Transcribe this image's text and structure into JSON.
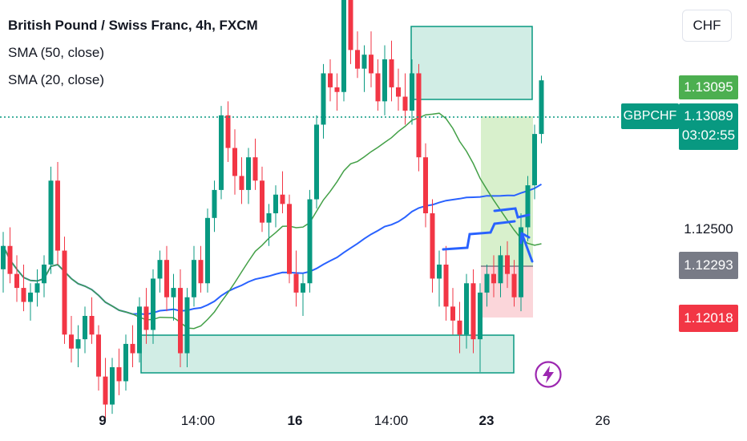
{
  "legend": {
    "title": "British Pound / Swiss Franc, 4h, FXCM",
    "ma1": "SMA (50, close)",
    "ma2": "SMA (20, close)"
  },
  "currency": "CHF",
  "symbol": "GBPCHF",
  "price_labels": {
    "high_zone": "1.13095",
    "last": "1.13089",
    "countdown": "03:02:55",
    "tick": "1.12500",
    "gray": "1.12293",
    "low_zone": "1.12018"
  },
  "colors": {
    "up": "#089981",
    "down": "#f23645",
    "sma50": "#2962ff",
    "sma20": "#43a047",
    "zone": "#d1ede5",
    "zone_border": "#089981",
    "target": "#d4eec6",
    "stop": "#fbd6da",
    "gray_label": "#787b86",
    "bolt": "#9c27b0"
  },
  "icons": {
    "bolt": "lightning-bolt-icon"
  },
  "chart_data": {
    "type": "candlestick",
    "symbol": "GBPCHF",
    "timeframe": "4h",
    "source": "FXCM",
    "x_ticks": [
      "9",
      "14:00",
      "16",
      "14:00",
      "23",
      "26"
    ],
    "y_ticks": [
      1.125
    ],
    "last_price": 1.13089,
    "series": [
      {
        "name": "SMA (50, close)",
        "color": "#2962ff"
      },
      {
        "name": "SMA (20, close)",
        "color": "#43a047"
      }
    ],
    "candles": [
      [
        1.1228,
        1.1244,
        1.1218,
        1.1238
      ],
      [
        1.1238,
        1.1246,
        1.1222,
        1.1226
      ],
      [
        1.1226,
        1.1234,
        1.1214,
        1.122
      ],
      [
        1.122,
        1.123,
        1.121,
        1.1214
      ],
      [
        1.1214,
        1.1222,
        1.1206,
        1.1218
      ],
      [
        1.1218,
        1.1228,
        1.1212,
        1.1222
      ],
      [
        1.1222,
        1.1234,
        1.1216,
        1.123
      ],
      [
        1.123,
        1.1272,
        1.1226,
        1.1266
      ],
      [
        1.1266,
        1.1274,
        1.123,
        1.1236
      ],
      [
        1.1236,
        1.1242,
        1.1196,
        1.12
      ],
      [
        1.12,
        1.1208,
        1.1188,
        1.1194
      ],
      [
        1.1194,
        1.1204,
        1.1186,
        1.1198
      ],
      [
        1.1198,
        1.1212,
        1.1192,
        1.1208
      ],
      [
        1.1208,
        1.1216,
        1.1196,
        1.12
      ],
      [
        1.12,
        1.1204,
        1.1176,
        1.1182
      ],
      [
        1.1182,
        1.119,
        1.1164,
        1.117
      ],
      [
        1.117,
        1.119,
        1.1166,
        1.1186
      ],
      [
        1.1186,
        1.1194,
        1.1174,
        1.118
      ],
      [
        1.118,
        1.12,
        1.1176,
        1.1196
      ],
      [
        1.1196,
        1.1204,
        1.1186,
        1.1192
      ],
      [
        1.1192,
        1.1216,
        1.1188,
        1.1212
      ],
      [
        1.1212,
        1.122,
        1.1196,
        1.1202
      ],
      [
        1.1202,
        1.1228,
        1.1196,
        1.1224
      ],
      [
        1.1224,
        1.1236,
        1.1218,
        1.1232
      ],
      [
        1.1232,
        1.1238,
        1.121,
        1.1216
      ],
      [
        1.1216,
        1.1226,
        1.1206,
        1.122
      ],
      [
        1.122,
        1.1228,
        1.1186,
        1.1192
      ],
      [
        1.1192,
        1.122,
        1.1186,
        1.1216
      ],
      [
        1.1216,
        1.1238,
        1.1212,
        1.1232
      ],
      [
        1.1232,
        1.1238,
        1.1218,
        1.1222
      ],
      [
        1.1222,
        1.1254,
        1.1218,
        1.125
      ],
      [
        1.125,
        1.1266,
        1.1244,
        1.1262
      ],
      [
        1.1262,
        1.1298,
        1.1258,
        1.1294
      ],
      [
        1.1294,
        1.13,
        1.1274,
        1.128
      ],
      [
        1.128,
        1.1288,
        1.126,
        1.1268
      ],
      [
        1.1268,
        1.1276,
        1.1256,
        1.1262
      ],
      [
        1.1262,
        1.128,
        1.1256,
        1.1276
      ],
      [
        1.1276,
        1.1284,
        1.1262,
        1.1266
      ],
      [
        1.1266,
        1.1272,
        1.1244,
        1.1248
      ],
      [
        1.1248,
        1.1256,
        1.1238,
        1.1252
      ],
      [
        1.1252,
        1.1264,
        1.1246,
        1.126
      ],
      [
        1.126,
        1.127,
        1.1252,
        1.1256
      ],
      [
        1.1256,
        1.126,
        1.1222,
        1.1226
      ],
      [
        1.1226,
        1.1236,
        1.1212,
        1.1218
      ],
      [
        1.1218,
        1.1226,
        1.1208,
        1.1222
      ],
      [
        1.1222,
        1.1262,
        1.1218,
        1.1258
      ],
      [
        1.1258,
        1.1294,
        1.1254,
        1.129
      ],
      [
        1.129,
        1.1316,
        1.1284,
        1.1312
      ],
      [
        1.1312,
        1.1318,
        1.13,
        1.1306
      ],
      [
        1.1306,
        1.1312,
        1.1296,
        1.1304
      ],
      [
        1.1304,
        1.1348,
        1.13,
        1.1344
      ],
      [
        1.1344,
        1.1348,
        1.1316,
        1.1322
      ],
      [
        1.1322,
        1.133,
        1.131,
        1.1314
      ],
      [
        1.1314,
        1.1324,
        1.1304,
        1.132
      ],
      [
        1.132,
        1.133,
        1.1306,
        1.1312
      ],
      [
        1.1312,
        1.1318,
        1.1296,
        1.13
      ],
      [
        1.13,
        1.1324,
        1.1294,
        1.1318
      ],
      [
        1.1318,
        1.1326,
        1.13,
        1.1306
      ],
      [
        1.1306,
        1.1314,
        1.1296,
        1.1302
      ],
      [
        1.1302,
        1.1312,
        1.129,
        1.1296
      ],
      [
        1.1296,
        1.1318,
        1.129,
        1.1312
      ],
      [
        1.1312,
        1.1316,
        1.127,
        1.1276
      ],
      [
        1.1276,
        1.1282,
        1.1246,
        1.1252
      ],
      [
        1.1252,
        1.1258,
        1.1218,
        1.1224
      ],
      [
        1.1224,
        1.1236,
        1.1212,
        1.123
      ],
      [
        1.123,
        1.1238,
        1.1206,
        1.1212
      ],
      [
        1.1212,
        1.122,
        1.12,
        1.1206
      ],
      [
        1.1206,
        1.1214,
        1.1192,
        1.12
      ],
      [
        1.12,
        1.1226,
        1.1194,
        1.1222
      ],
      [
        1.1222,
        1.1228,
        1.1192,
        1.1198
      ],
      [
        1.1198,
        1.1222,
        1.1184,
        1.1218
      ],
      [
        1.1218,
        1.123,
        1.1212,
        1.1226
      ],
      [
        1.1226,
        1.1234,
        1.1216,
        1.1222
      ],
      [
        1.1222,
        1.1238,
        1.1216,
        1.1234
      ],
      [
        1.1234,
        1.124,
        1.122,
        1.1226
      ],
      [
        1.1226,
        1.1232,
        1.1212,
        1.1216
      ],
      [
        1.1216,
        1.1252,
        1.121,
        1.1246
      ],
      [
        1.1246,
        1.1268,
        1.124,
        1.1264
      ],
      [
        1.1264,
        1.129,
        1.1258,
        1.1286
      ],
      [
        1.1286,
        1.1311,
        1.1282,
        1.1309
      ]
    ]
  }
}
